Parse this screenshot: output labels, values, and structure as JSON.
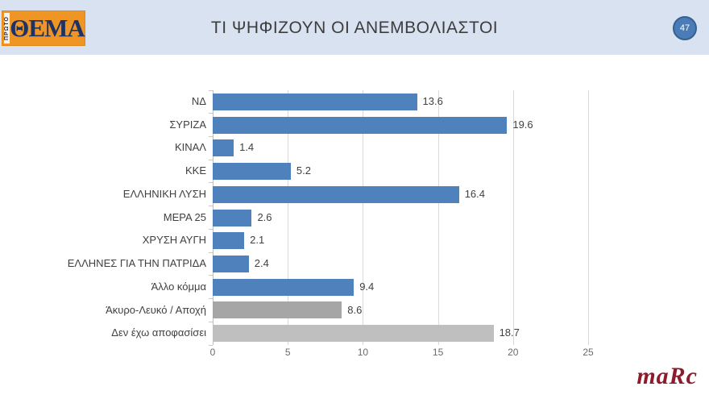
{
  "header": {
    "logo": {
      "vertical_text": "ΠΡΩΤΟ",
      "main_text": "ΘΕΜΑ"
    },
    "title": "ΤΙ ΨΗΦΙΖΟΥΝ ΟΙ ΑΝΕΜΒΟΛΙΑΣΤΟΙ",
    "page_number": "47"
  },
  "footer": {
    "brand": "maRc"
  },
  "colors": {
    "header_bg": "#d9e2f0",
    "logo_orange": "#ef9526",
    "logo_navy": "#1e3263",
    "bar_blue": "#4f81bd",
    "bar_gray": "#a6a6a6",
    "bar_light_gray": "#bfbfbf",
    "badge_blue": "#4a7cb8",
    "marc_red": "#8c1c2c",
    "gridline": "#d9d9d9"
  },
  "chart_data": {
    "type": "bar",
    "orientation": "horizontal",
    "title": "ΤΙ ΨΗΦΙΖΟΥΝ ΟΙ ΑΝΕΜΒΟΛΙΑΣΤΟΙ",
    "categories": [
      "ΝΔ",
      "ΣΥΡΙΖΑ",
      "ΚΙΝΑΛ",
      "ΚΚΕ",
      "ΕΛΛΗΝΙΚΗ ΛΥΣΗ",
      "ΜΕΡΑ 25",
      "ΧΡΥΣΗ ΑΥΓΗ",
      "ΕΛΛΗΝΕΣ ΓΙΑ ΤΗΝ ΠΑΤΡΙΔΑ",
      "Άλλο κόμμα",
      "Άκυρο-Λευκό / Αποχή",
      "Δεν έχω αποφασίσει"
    ],
    "values": [
      13.6,
      19.6,
      1.4,
      5.2,
      16.4,
      2.6,
      2.1,
      2.4,
      9.4,
      8.6,
      18.7
    ],
    "bar_colors": [
      "#4f81bd",
      "#4f81bd",
      "#4f81bd",
      "#4f81bd",
      "#4f81bd",
      "#4f81bd",
      "#4f81bd",
      "#4f81bd",
      "#4f81bd",
      "#a6a6a6",
      "#bfbfbf"
    ],
    "x_ticks": [
      0,
      5,
      10,
      15,
      20,
      25
    ],
    "xlim": [
      0,
      25
    ],
    "grid": true,
    "value_labels": true,
    "legend": false
  }
}
